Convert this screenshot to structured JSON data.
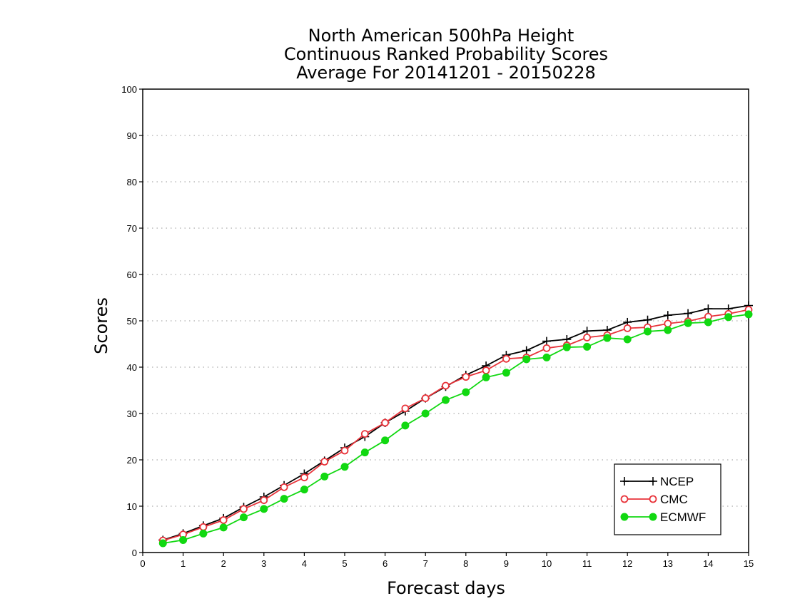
{
  "chart_data": {
    "type": "line",
    "title_lines": [
      "North American 500hPa Height",
      "Continuous Ranked Probability Scores",
      "Average For 20141201 - 20150228"
    ],
    "xlabel": "Forecast days",
    "ylabel": "Scores",
    "xlim": [
      0,
      15
    ],
    "ylim": [
      0,
      100
    ],
    "xticks": [
      0,
      1,
      2,
      3,
      4,
      5,
      6,
      7,
      8,
      9,
      10,
      11,
      12,
      13,
      14,
      15
    ],
    "yticks": [
      0,
      10,
      20,
      30,
      40,
      50,
      60,
      70,
      80,
      90,
      100
    ],
    "grid": "horizontal-dotted",
    "legend_position": "bottom-right",
    "x": [
      0.5,
      1.0,
      1.5,
      2.0,
      2.5,
      3.0,
      3.5,
      4.0,
      4.5,
      5.0,
      5.5,
      6.0,
      6.5,
      7.0,
      7.5,
      8.0,
      8.5,
      9.0,
      9.5,
      10.0,
      10.5,
      11.0,
      11.5,
      12.0,
      12.5,
      13.0,
      13.5,
      14.0,
      14.5,
      15.0
    ],
    "series": [
      {
        "name": "NCEP",
        "color": "#000000",
        "marker": "plus",
        "values": [
          2.7,
          4.1,
          5.8,
          7.4,
          9.8,
          12.0,
          14.5,
          17.0,
          19.8,
          22.6,
          25.0,
          28.0,
          30.5,
          33.3,
          35.8,
          38.3,
          40.3,
          42.6,
          43.6,
          45.6,
          46.0,
          47.8,
          48.0,
          49.7,
          50.2,
          51.2,
          51.6,
          52.6,
          52.6,
          53.3
        ]
      },
      {
        "name": "CMC",
        "color": "#e8333a",
        "marker": "open-circle",
        "values": [
          2.6,
          3.9,
          5.5,
          7.0,
          9.4,
          11.3,
          14.1,
          16.2,
          19.6,
          22.0,
          25.6,
          28.0,
          31.1,
          33.3,
          36.0,
          37.9,
          39.3,
          41.8,
          42.1,
          44.1,
          44.7,
          46.4,
          46.9,
          48.4,
          48.6,
          49.4,
          49.9,
          50.9,
          51.5,
          52.4
        ]
      },
      {
        "name": "ECMWF",
        "color": "#11d811",
        "marker": "filled-circle",
        "values": [
          2.0,
          2.7,
          4.1,
          5.4,
          7.6,
          9.4,
          11.6,
          13.6,
          16.4,
          18.5,
          21.6,
          24.2,
          27.4,
          30.0,
          32.9,
          34.6,
          37.8,
          38.8,
          41.7,
          42.1,
          44.3,
          44.4,
          46.3,
          46.0,
          47.7,
          48.0,
          49.5,
          49.7,
          50.8,
          51.4
        ]
      }
    ]
  }
}
